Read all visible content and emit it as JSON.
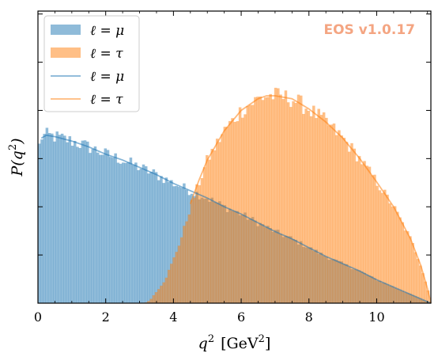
{
  "chart_data": {
    "type": "area",
    "xlabel_var": "q",
    "xlabel_sup": "2",
    "xlabel_unit": "[GeV",
    "xlabel_unit_sup": "2",
    "xlabel_unit_close": "]",
    "ylabel_func": "P(q",
    "ylabel_sup": "2",
    "ylabel_close": ")",
    "xlim": [
      0,
      11.6
    ],
    "ylim": [
      0,
      1.0
    ],
    "x_ticks": [
      0,
      2,
      4,
      6,
      8,
      10
    ],
    "x_tick_labels": [
      "0",
      "2",
      "4",
      "6",
      "8",
      "10"
    ],
    "y_ticks_unlabeled": [
      0.165,
      0.33,
      0.495,
      0.66,
      0.825,
      0.99
    ],
    "grid": false,
    "legend_position": "top-left",
    "watermark": "EOS v1.0.17",
    "legend": [
      {
        "label": "ℓ = μ",
        "kind": "histogram",
        "color": "#1f77b4"
      },
      {
        "label": "ℓ = τ",
        "kind": "histogram",
        "color": "#ff7f0e"
      },
      {
        "label": "ℓ = μ",
        "kind": "line",
        "color": "#1f77b4"
      },
      {
        "label": "ℓ = τ",
        "kind": "line",
        "color": "#ff7f0e"
      }
    ],
    "series": [
      {
        "kind": "histogram",
        "color": "#1f77b4",
        "x_range": [
          0.0,
          11.6
        ],
        "curve": [
          [
            0.0,
            0.52
          ],
          [
            0.1,
            0.57
          ],
          [
            0.25,
            0.575
          ],
          [
            0.5,
            0.57
          ],
          [
            1.0,
            0.555
          ],
          [
            1.5,
            0.535
          ],
          [
            2.0,
            0.51
          ],
          [
            2.5,
            0.49
          ],
          [
            3.0,
            0.465
          ],
          [
            3.5,
            0.44
          ],
          [
            4.0,
            0.41
          ],
          [
            4.5,
            0.385
          ],
          [
            5.0,
            0.36
          ],
          [
            5.5,
            0.33
          ],
          [
            6.0,
            0.305
          ],
          [
            6.5,
            0.275
          ],
          [
            7.0,
            0.245
          ],
          [
            7.5,
            0.22
          ],
          [
            8.0,
            0.19
          ],
          [
            8.5,
            0.16
          ],
          [
            9.0,
            0.135
          ],
          [
            9.5,
            0.11
          ],
          [
            10.0,
            0.08
          ],
          [
            10.5,
            0.055
          ],
          [
            11.0,
            0.03
          ],
          [
            11.4,
            0.01
          ],
          [
            11.6,
            0.0
          ]
        ]
      },
      {
        "kind": "histogram",
        "color": "#ff7f0e",
        "x_range": [
          3.15,
          11.6
        ],
        "curve": [
          [
            3.15,
            0.0
          ],
          [
            3.3,
            0.01
          ],
          [
            3.5,
            0.04
          ],
          [
            3.75,
            0.08
          ],
          [
            4.0,
            0.15
          ],
          [
            4.25,
            0.23
          ],
          [
            4.5,
            0.33
          ],
          [
            4.75,
            0.41
          ],
          [
            5.0,
            0.49
          ],
          [
            5.5,
            0.59
          ],
          [
            6.0,
            0.66
          ],
          [
            6.5,
            0.7
          ],
          [
            6.75,
            0.71
          ],
          [
            7.0,
            0.71
          ],
          [
            7.5,
            0.7
          ],
          [
            8.0,
            0.665
          ],
          [
            8.5,
            0.62
          ],
          [
            9.0,
            0.565
          ],
          [
            9.5,
            0.495
          ],
          [
            10.0,
            0.415
          ],
          [
            10.5,
            0.33
          ],
          [
            11.0,
            0.22
          ],
          [
            11.3,
            0.13
          ],
          [
            11.5,
            0.05
          ],
          [
            11.6,
            0.0
          ]
        ]
      },
      {
        "kind": "line",
        "color": "#1f77b4",
        "points": [
          [
            0.1,
            0.565
          ],
          [
            0.25,
            0.575
          ],
          [
            0.5,
            0.57
          ],
          [
            1.0,
            0.555
          ],
          [
            1.5,
            0.535
          ],
          [
            2.0,
            0.51
          ],
          [
            2.5,
            0.49
          ],
          [
            3.0,
            0.465
          ],
          [
            3.5,
            0.44
          ],
          [
            4.0,
            0.41
          ],
          [
            4.5,
            0.385
          ],
          [
            5.0,
            0.36
          ],
          [
            5.5,
            0.33
          ],
          [
            6.0,
            0.305
          ],
          [
            6.5,
            0.275
          ],
          [
            7.0,
            0.245
          ],
          [
            7.5,
            0.22
          ],
          [
            8.0,
            0.19
          ],
          [
            8.5,
            0.16
          ],
          [
            9.0,
            0.135
          ],
          [
            9.5,
            0.11
          ],
          [
            10.0,
            0.08
          ],
          [
            10.5,
            0.055
          ],
          [
            11.0,
            0.03
          ],
          [
            11.4,
            0.01
          ],
          [
            11.6,
            0.0
          ]
        ]
      },
      {
        "kind": "line",
        "color": "#ff7f0e",
        "points": [
          [
            4.5,
            0.34
          ],
          [
            4.75,
            0.42
          ],
          [
            5.0,
            0.49
          ],
          [
            5.5,
            0.59
          ],
          [
            6.0,
            0.66
          ],
          [
            6.5,
            0.7
          ],
          [
            6.75,
            0.71
          ],
          [
            7.0,
            0.71
          ],
          [
            7.5,
            0.7
          ],
          [
            8.0,
            0.665
          ],
          [
            8.5,
            0.62
          ],
          [
            9.0,
            0.565
          ],
          [
            9.5,
            0.495
          ],
          [
            10.0,
            0.415
          ],
          [
            10.5,
            0.33
          ],
          [
            11.0,
            0.22
          ],
          [
            11.3,
            0.13
          ],
          [
            11.5,
            0.05
          ],
          [
            11.6,
            0.0
          ]
        ]
      }
    ]
  }
}
